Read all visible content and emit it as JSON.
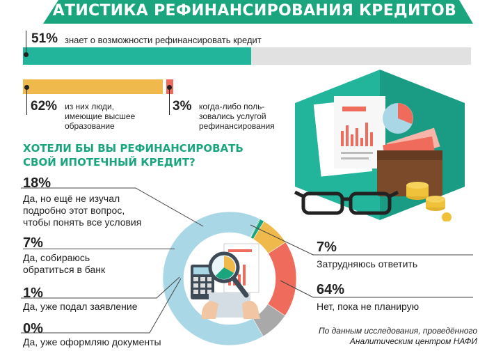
{
  "header": {
    "title": "СТАТИСТИКА РЕФИНАНСИРОВАНИЯ КРЕДИТОВ"
  },
  "top_bar": {
    "value": 51,
    "pct": "51%",
    "label": "знает о возможности рефинансировать кредит"
  },
  "sub_bars": [
    {
      "value": 62,
      "pct": "62%",
      "label": "из них люди, имеющие высшее образование"
    },
    {
      "value": 3,
      "pct": "3%",
      "label": "когда-либо пользовались услугой рефинансирования"
    }
  ],
  "question": {
    "title": "ХОТЕЛИ БЫ ВЫ РЕФИНАНСИРОВАТЬ СВОЙ ИПОТЕЧНЫЙ КРЕДИТ?"
  },
  "chart_data": {
    "type": "pie",
    "title": "ХОТЕЛИ БЫ ВЫ РЕФИНАНСИРОВАТЬ СВОЙ ИПОТЕЧНЫЙ КРЕДИТ?",
    "slices": [
      {
        "label": "Нет, пока не планирую",
        "value": 64,
        "pct": "64%",
        "color": "#a9d7e6"
      },
      {
        "label": "Да, уже оформляю документы",
        "value": 0,
        "pct": "0%",
        "color": "#1aa57e"
      },
      {
        "label": "Да, уже подал заявление",
        "value": 1,
        "pct": "1%",
        "color": "#1aa57e"
      },
      {
        "label": "Да, собираюсь обратиться в банк",
        "value": 7,
        "pct": "7%",
        "color": "#f0b94b"
      },
      {
        "label": "Да, но ещё не изучал подробно этот вопрос, чтобы понять все условия",
        "value": 18,
        "pct": "18%",
        "color": "#ef6b5b"
      },
      {
        "label": "Затрудняюсь ответить",
        "value": 7,
        "pct": "7%",
        "color": "#a9a9a9"
      }
    ]
  },
  "left_labels": [
    {
      "pct": "18%",
      "lines": [
        "Да, но ещё не изучал",
        "подробно этот вопрос,",
        "чтобы понять все условия"
      ]
    },
    {
      "pct": "7%",
      "lines": [
        "Да, собираюсь",
        "обратиться в банк"
      ]
    },
    {
      "pct": "1%",
      "lines": [
        "Да, уже подал заявление"
      ]
    },
    {
      "pct": "0%",
      "lines": [
        "Да, уже оформляю документы"
      ]
    }
  ],
  "right_labels": [
    {
      "pct": "7%",
      "lines": [
        "Затрудняюсь ответить"
      ]
    },
    {
      "pct": "64%",
      "lines": [
        "Нет, пока не планирую"
      ]
    }
  ],
  "sub_labels": {
    "higher_ed": [
      "из них люди,",
      "имеющие высшее",
      "образование"
    ],
    "used": [
      "когда-либо поль-",
      "зовались услугой",
      "рефинансирования"
    ]
  },
  "source": {
    "lines": [
      "По данным исследования, проведённого",
      "Аналитическим центром НАФИ"
    ]
  },
  "colors": {
    "green": "#1aa57e",
    "teal": "#23b59c",
    "gray_bar": "#e1e1e1",
    "yellow": "#f0b94b",
    "red": "#ef6b5b",
    "light_blue": "#a9d7e6"
  },
  "icons": [
    "money-illustration-icon",
    "magnifier-illustration-icon"
  ]
}
